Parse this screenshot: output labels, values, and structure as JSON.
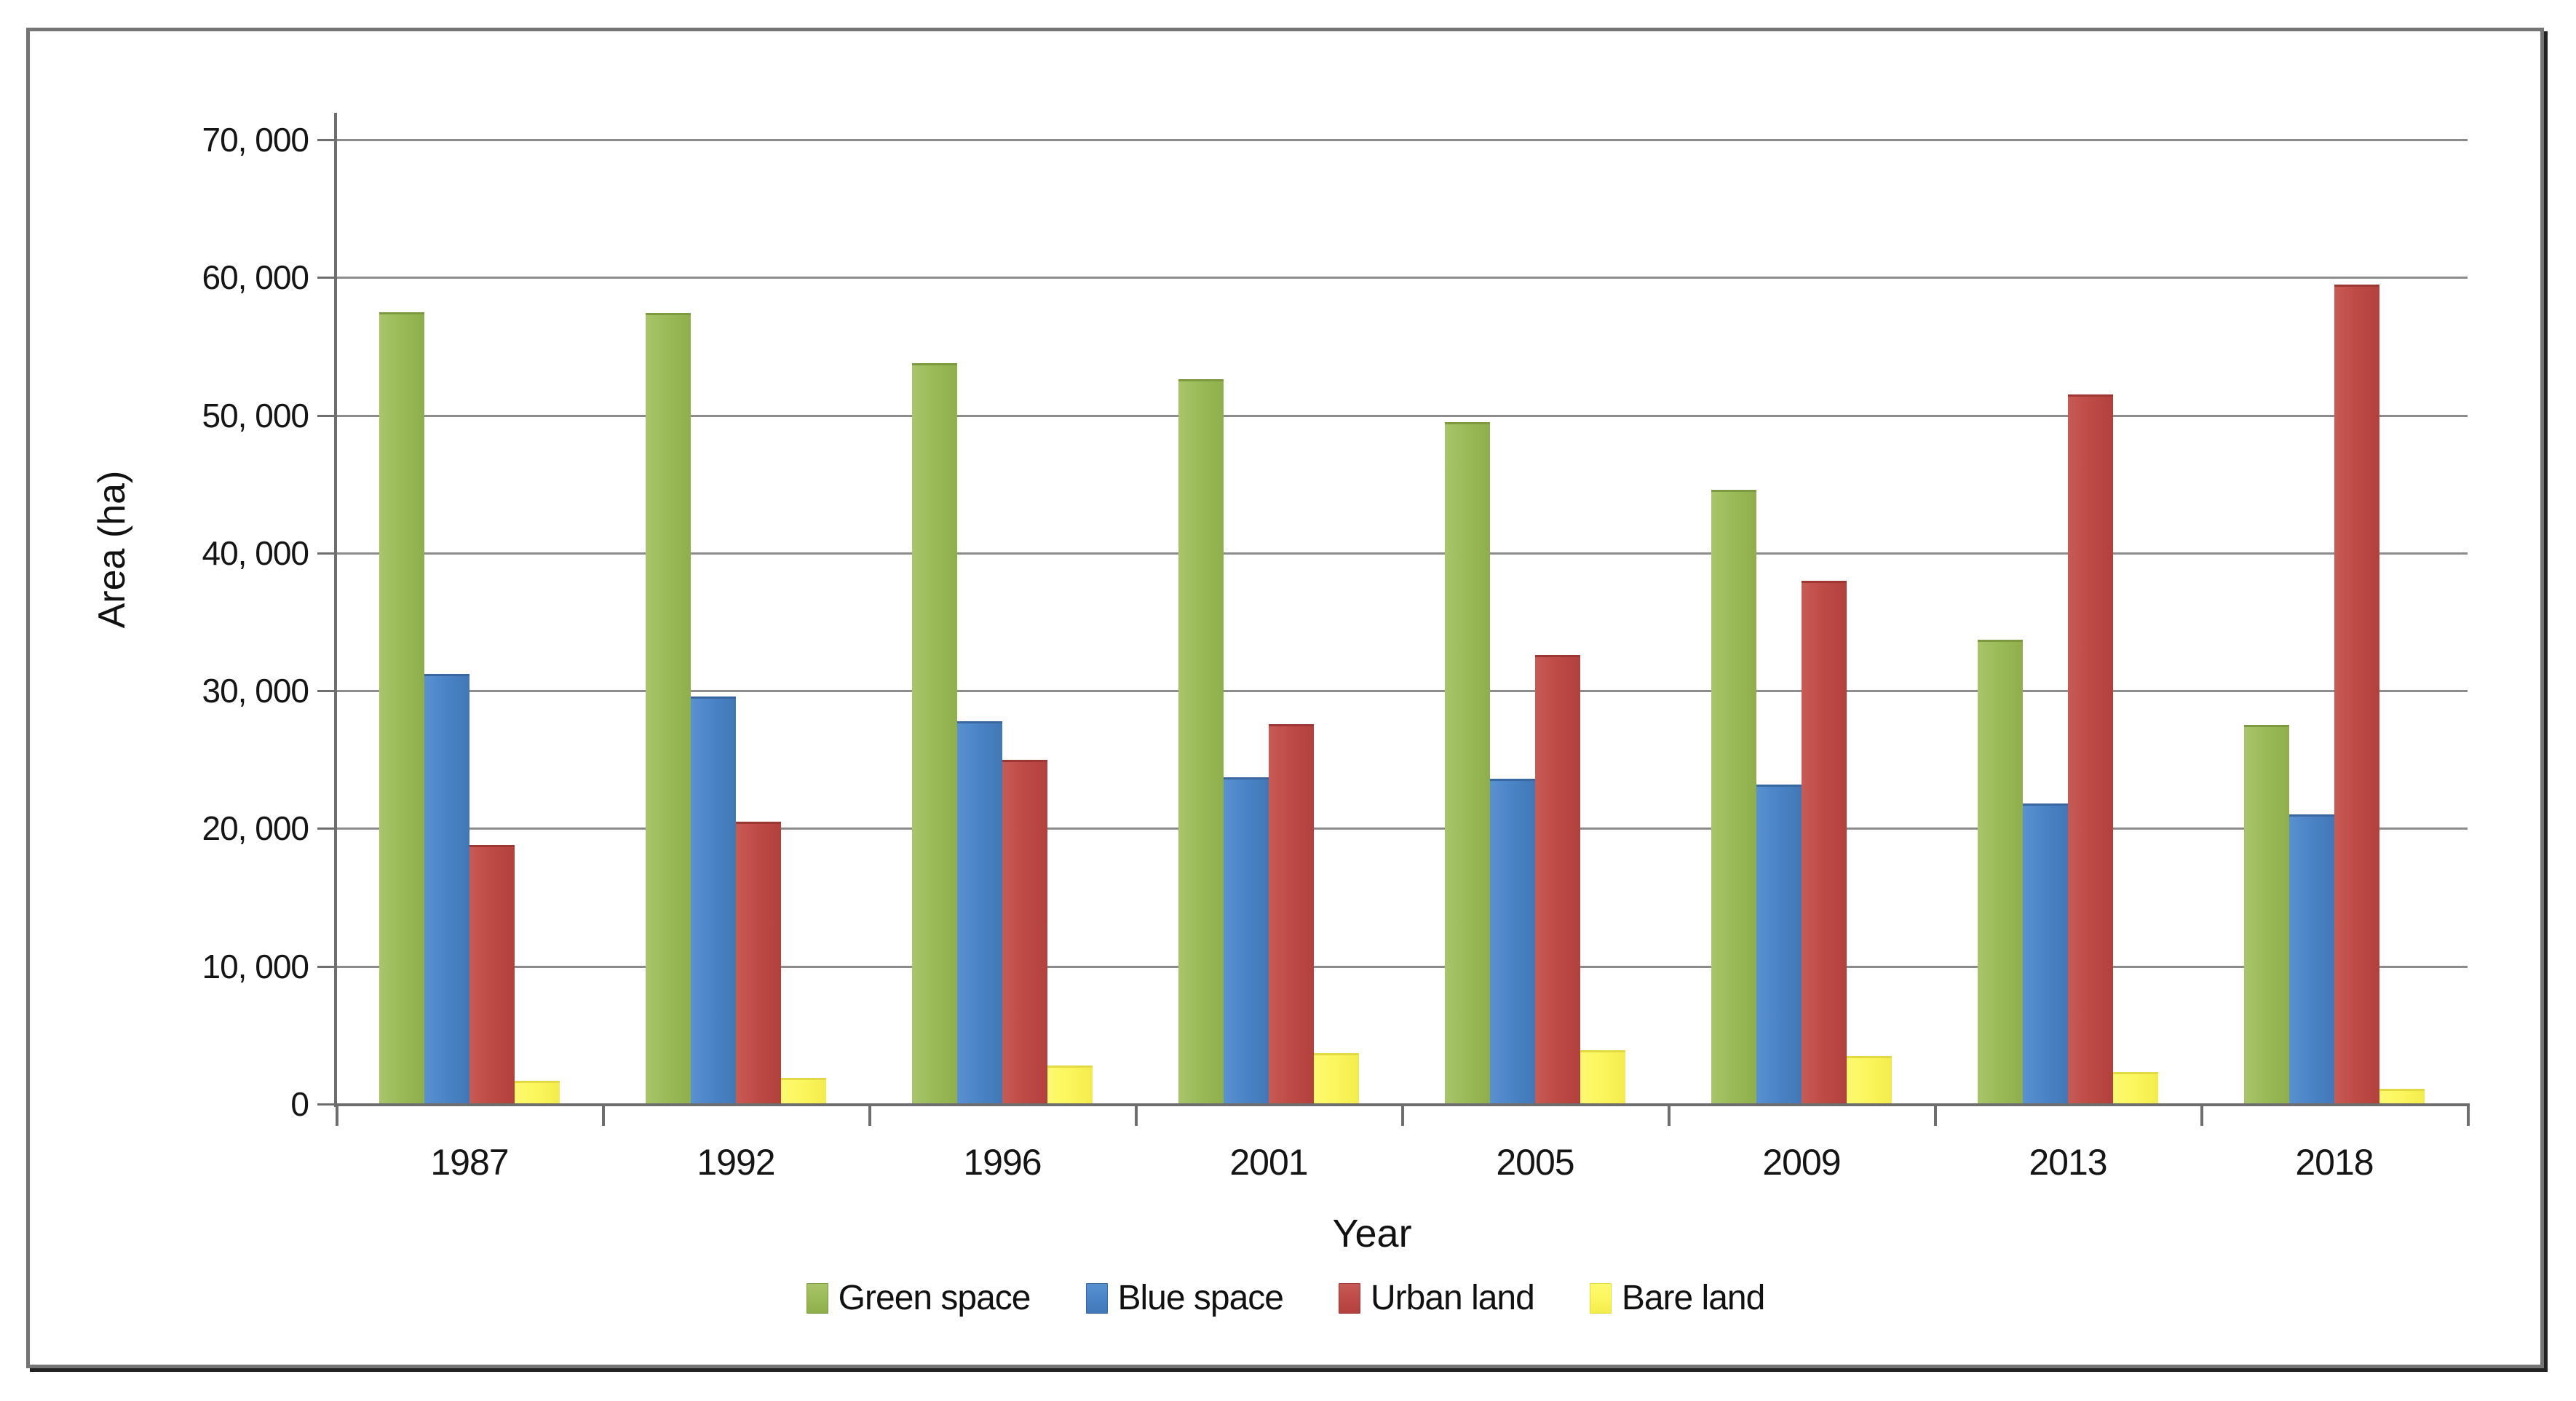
{
  "chart_data": {
    "type": "bar",
    "title": "",
    "xlabel": "Year",
    "ylabel": "Area (ha)",
    "categories": [
      "1987",
      "1992",
      "1996",
      "2001",
      "2005",
      "2009",
      "2013",
      "2018"
    ],
    "series": [
      {
        "name": "Green space",
        "color": "#9bbb59",
        "color_light": "#a8c56a",
        "color_dark": "#8fae4c",
        "edge": "#7e9a40",
        "values": [
          57500,
          57400,
          53800,
          52600,
          49500,
          44600,
          33700,
          27500
        ]
      },
      {
        "name": "Blue space",
        "color": "#4a85c8",
        "color_light": "#5a91d0",
        "color_dark": "#4277b6",
        "edge": "#3a67a0",
        "values": [
          31200,
          29600,
          27800,
          23700,
          23600,
          23200,
          21800,
          21000
        ]
      },
      {
        "name": "Urban land",
        "color": "#bf4b47",
        "color_light": "#c85a55",
        "color_dark": "#b2403c",
        "edge": "#9c3733",
        "values": [
          18800,
          20500,
          25000,
          27600,
          32600,
          38000,
          51500,
          59500
        ]
      },
      {
        "name": "Bare land",
        "color": "#fcf75e",
        "color_light": "#fdf970",
        "color_dark": "#f3ec4c",
        "edge": "#e2d945",
        "values": [
          1700,
          1900,
          2800,
          3700,
          3900,
          3500,
          2300,
          1100
        ]
      }
    ],
    "ylim": [
      0,
      70000
    ],
    "ytick_step": 10000,
    "ytick_labels": [
      "0",
      "10, 000",
      "20, 000",
      "30, 000",
      "40, 000",
      "50, 000",
      "60, 000",
      "70, 000"
    ],
    "grid": true,
    "legend_position": "bottom"
  }
}
